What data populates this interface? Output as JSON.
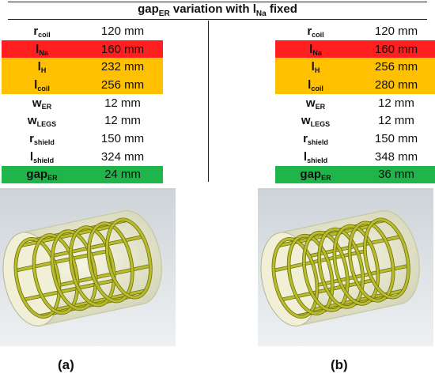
{
  "title": {
    "prefix": "gap",
    "prefix_sub": "ER",
    "mid": " variation with l",
    "mid_sub": "Na",
    "suffix": " fixed"
  },
  "panels": [
    {
      "label": "(a)",
      "rows": [
        {
          "sym": "r",
          "sub": "coil",
          "value": "120 mm",
          "highlight": ""
        },
        {
          "sym": "l",
          "sub": "Na",
          "value": "160 mm",
          "highlight": "red"
        },
        {
          "sym": "l",
          "sub": "H",
          "value": "232 mm",
          "highlight": "orange"
        },
        {
          "sym": "l",
          "sub": "coil",
          "value": "256 mm",
          "highlight": "orange"
        },
        {
          "sym": "w",
          "sub": "ER",
          "value": "12 mm",
          "highlight": ""
        },
        {
          "sym": "w",
          "sub": "LEGS",
          "value": "12 mm",
          "highlight": ""
        },
        {
          "sym": "r",
          "sub": "shield",
          "value": "150 mm",
          "highlight": ""
        },
        {
          "sym": "l",
          "sub": "shield",
          "value": "324 mm",
          "highlight": ""
        },
        {
          "sym": "gap",
          "sub": "ER",
          "value": "24 mm",
          "highlight": "green"
        }
      ]
    },
    {
      "label": "(b)",
      "rows": [
        {
          "sym": "r",
          "sub": "coil",
          "value": "120 mm",
          "highlight": ""
        },
        {
          "sym": "l",
          "sub": "Na",
          "value": "160 mm",
          "highlight": "red"
        },
        {
          "sym": "l",
          "sub": "H",
          "value": "256 mm",
          "highlight": "orange"
        },
        {
          "sym": "l",
          "sub": "coil",
          "value": "280 mm",
          "highlight": "orange"
        },
        {
          "sym": "w",
          "sub": "ER",
          "value": "12 mm",
          "highlight": ""
        },
        {
          "sym": "w",
          "sub": "LEGS",
          "value": "12 mm",
          "highlight": ""
        },
        {
          "sym": "r",
          "sub": "shield",
          "value": "150 mm",
          "highlight": ""
        },
        {
          "sym": "l",
          "sub": "shield",
          "value": "348 mm",
          "highlight": ""
        },
        {
          "sym": "gap",
          "sub": "ER",
          "value": "36 mm",
          "highlight": "green"
        }
      ]
    }
  ],
  "colors": {
    "red": "#ff1f1f",
    "orange": "#ffc000",
    "green": "#1fb54a",
    "shield": "#ecebc4",
    "coil": "#b9bd2a",
    "coil_dark": "#6e7012"
  },
  "renders": [
    {
      "legs": 8,
      "rings": 6
    },
    {
      "legs": 8,
      "rings": 7
    }
  ]
}
